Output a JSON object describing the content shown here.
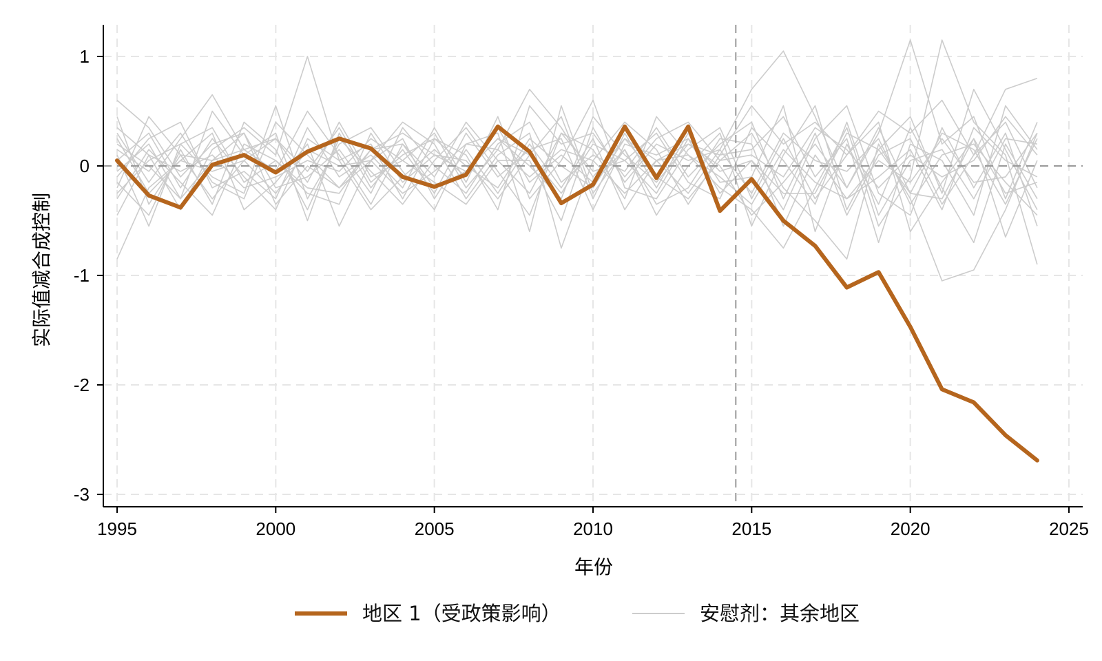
{
  "chart_data": {
    "type": "line",
    "xlabel": "年份",
    "ylabel": "实际值减合成控制",
    "xlim": [
      1995,
      2025
    ],
    "ylim": [
      -3,
      1
    ],
    "x_ticks": [
      1995,
      2000,
      2005,
      2010,
      2015,
      2020,
      2025
    ],
    "y_ticks": [
      1,
      0,
      -1,
      -2,
      -3
    ],
    "grid": true,
    "treatment_line_x": 2014.5,
    "reference_line_y": 0,
    "legend_position": "bottom",
    "colors": {
      "treated": "#B5651D",
      "placebo": "#CCCCCC"
    },
    "x": [
      1995,
      1996,
      1997,
      1998,
      1999,
      2000,
      2001,
      2002,
      2003,
      2004,
      2005,
      2006,
      2007,
      2008,
      2009,
      2010,
      2011,
      2012,
      2013,
      2014,
      2015,
      2016,
      2017,
      2018,
      2019,
      2020,
      2021,
      2022,
      2023,
      2024
    ],
    "series": [
      {
        "name": "地区 1（受政策影响）",
        "values": [
          0.05,
          -0.27,
          -0.38,
          0.01,
          0.1,
          -0.06,
          0.13,
          0.25,
          0.16,
          -0.1,
          -0.19,
          -0.08,
          0.36,
          0.13,
          -0.34,
          -0.17,
          0.36,
          -0.11,
          0.36,
          -0.41,
          -0.12,
          -0.5,
          -0.73,
          -1.11,
          -0.97,
          -1.47,
          -2.04,
          -2.16,
          -2.46,
          -2.69
        ]
      },
      {
        "name": "安慰剂：其余地区",
        "values": [
          0.6,
          0.35,
          -0.1,
          0.2,
          0.3,
          -0.35,
          0.0,
          -0.2,
          0.15,
          0.3,
          0.1,
          -0.05,
          0.25,
          0.0,
          -0.3,
          0.45,
          0.1,
          -0.15,
          0.2,
          0.1,
          0.55,
          0.2,
          0.4,
          0.1,
          0.5,
          0.3,
          0.6,
          0.1,
          0.7,
          0.8
        ]
      },
      {
        "values": [
          -0.2,
          0.45,
          0.1,
          -0.3,
          0.05,
          0.25,
          -0.15,
          0.4,
          -0.1,
          0.05,
          0.3,
          -0.2,
          0.15,
          0.7,
          0.35,
          -0.1,
          0.25,
          0.05,
          -0.25,
          0.15,
          0.7,
          1.05,
          0.45,
          -0.2,
          0.3,
          1.15,
          0.2,
          0.45,
          -0.3,
          0.4
        ]
      },
      {
        "values": [
          0.3,
          -0.15,
          0.25,
          0.65,
          0.15,
          -0.05,
          0.5,
          0.1,
          -0.35,
          0.2,
          -0.1,
          0.4,
          0.05,
          -0.25,
          0.3,
          0.15,
          -0.3,
          0.45,
          0.1,
          -0.2,
          -0.4,
          -0.75,
          -0.2,
          0.35,
          -0.55,
          -0.1,
          1.15,
          0.4,
          0.1,
          -0.9
        ]
      },
      {
        "values": [
          -0.45,
          0.1,
          -0.4,
          0.15,
          0.35,
          0.1,
          1.0,
          0.05,
          0.2,
          -0.3,
          0.25,
          0.1,
          -0.4,
          0.55,
          0.2,
          0.3,
          -0.1,
          0.25,
          0.4,
          0.05,
          0.3,
          -0.2,
          -0.5,
          -0.85,
          0.2,
          -0.3,
          -1.05,
          -0.95,
          -0.4,
          0.3
        ]
      },
      {
        "values": [
          0.1,
          -0.55,
          0.2,
          -0.1,
          -0.25,
          0.55,
          -0.3,
          0.2,
          0.35,
          -0.05,
          -0.4,
          0.2,
          0.3,
          -0.6,
          0.55,
          -0.25,
          0.15,
          -0.45,
          0.0,
          0.3,
          -0.55,
          0.1,
          0.55,
          -0.4,
          0.15,
          0.45,
          -0.25,
          0.7,
          0.15,
          -0.4
        ]
      },
      {
        "values": [
          -0.85,
          -0.2,
          0.05,
          0.3,
          -0.4,
          -0.15,
          0.2,
          -0.55,
          0.05,
          0.4,
          0.2,
          -0.3,
          0.1,
          0.3,
          -0.75,
          0.05,
          0.4,
          0.15,
          -0.35,
          0.1,
          0.15,
          0.45,
          -0.1,
          0.25,
          -0.7,
          0.2,
          0.05,
          -0.45,
          0.55,
          0.15
        ]
      },
      {
        "values": [
          0.2,
          0.0,
          -0.3,
          0.5,
          0.1,
          0.3,
          -0.5,
          0.3,
          -0.2,
          0.15,
          -0.25,
          0.3,
          -0.1,
          0.15,
          0.25,
          -0.4,
          0.2,
          0.1,
          0.25,
          -0.25,
          0.05,
          -0.4,
          0.25,
          0.55,
          -0.25,
          -0.45,
          0.35,
          -0.2,
          0.3,
          -0.55
        ]
      },
      {
        "values": [
          -0.1,
          0.25,
          0.4,
          -0.2,
          -0.05,
          -0.3,
          0.35,
          -0.1,
          0.1,
          -0.2,
          0.35,
          -0.15,
          0.45,
          -0.3,
          0.05,
          0.6,
          -0.2,
          -0.3,
          0.15,
          0.35,
          -0.3,
          0.25,
          -0.3,
          0.1,
          0.4,
          -0.6,
          -0.15,
          0.25,
          -0.65,
          0.05
        ]
      },
      {
        "values": [
          0.45,
          -0.35,
          0.1,
          0.05,
          0.3,
          -0.2,
          -0.1,
          0.15,
          -0.25,
          0.35,
          0.0,
          -0.25,
          0.2,
          0.4,
          -0.15,
          0.1,
          -0.05,
          0.35,
          -0.1,
          0.2,
          0.4,
          -0.3,
          0.3,
          -0.45,
          0.1,
          0.25,
          -0.35,
          0.1,
          0.4,
          -0.2
        ]
      },
      {
        "values": [
          -0.3,
          0.15,
          -0.15,
          -0.45,
          0.2,
          0.05,
          -0.25,
          -0.35,
          0.3,
          -0.15,
          0.1,
          0.05,
          -0.3,
          0.1,
          0.45,
          -0.3,
          0.3,
          -0.2,
          0.3,
          -0.15,
          -0.1,
          0.55,
          -0.6,
          0.2,
          -0.35,
          0.35,
          -0.2,
          -0.7,
          0.2,
          -0.3
        ]
      },
      {
        "values": [
          0.15,
          -0.05,
          0.3,
          -0.15,
          -0.3,
          0.4,
          0.1,
          -0.2,
          0.05,
          0.25,
          -0.3,
          0.15,
          -0.25,
          0.2,
          -0.2,
          0.25,
          -0.4,
          0.05,
          0.2,
          0.0,
          -0.45,
          -0.15,
          0.2,
          -0.2,
          0.35,
          -0.25,
          0.3,
          0.15,
          -0.35,
          0.25
        ]
      },
      {
        "values": [
          0.05,
          0.3,
          -0.2,
          0.25,
          -0.1,
          -0.4,
          0.25,
          0.05,
          -0.4,
          -0.1,
          0.15,
          -0.1,
          0.35,
          -0.15,
          0.1,
          -0.15,
          0.15,
          -0.35,
          -0.2,
          0.25,
          0.2,
          -0.55,
          0.1,
          -0.3,
          -0.1,
          0.15,
          -0.4,
          0.35,
          0.05,
          -0.1
        ]
      },
      {
        "values": [
          -0.15,
          -0.45,
          0.15,
          -0.35,
          0.4,
          0.15,
          -0.4,
          0.25,
          -0.05,
          -0.35,
          0.05,
          0.35,
          -0.05,
          -0.45,
          0.3,
          -0.05,
          0.05,
          0.3,
          -0.15,
          -0.3,
          0.35,
          0.05,
          -0.35,
          0.4,
          -0.45,
          0.05,
          0.15,
          -0.3,
          0.25,
          0.2
        ]
      },
      {
        "values": [
          0.35,
          0.1,
          -0.05,
          0.1,
          -0.2,
          -0.1,
          0.05,
          -0.05,
          0.25,
          0.05,
          -0.15,
          -0.35,
          0.05,
          0.05,
          -0.5,
          0.35,
          -0.15,
          0.2,
          0.05,
          0.15,
          -0.25,
          0.3,
          0.05,
          -0.05,
          0.25,
          -0.35,
          0.1,
          0.2,
          -0.15,
          -0.45
        ]
      },
      {
        "values": [
          -0.05,
          0.2,
          -0.3,
          0.05,
          0.15,
          0.25,
          -0.05,
          0.35,
          -0.15,
          0.1,
          0.25,
          0.0,
          -0.2,
          0.25,
          0.0,
          -0.2,
          0.25,
          -0.1,
          -0.3,
          0.05,
          0.1,
          -0.1,
          0.35,
          0.15,
          -0.2,
          0.1,
          -0.1,
          0.05,
          0.45,
          0.1
        ]
      },
      {
        "values": [
          0.25,
          -0.25,
          0.05,
          -0.05,
          0.05,
          -0.25,
          0.15,
          0.0,
          0.05,
          -0.25,
          -0.05,
          0.2,
          0.15,
          -0.1,
          0.15,
          0.05,
          -0.25,
          0.05,
          0.1,
          -0.1,
          -0.35,
          0.15,
          -0.15,
          -0.3,
          0.05,
          -0.15,
          0.25,
          -0.15,
          -0.1,
          0.3
        ]
      },
      {
        "values": [
          -0.25,
          0.05,
          0.2,
          0.35,
          -0.15,
          0.05,
          -0.2,
          -0.25,
          0.15,
          0.2,
          -0.2,
          -0.05,
          0.25,
          0.1,
          -0.25,
          0.2,
          0.05,
          -0.25,
          0.25,
          -0.05,
          0.05,
          -0.25,
          -0.25,
          0.3,
          0.15,
          -0.25,
          -0.3,
          0.25,
          -0.25,
          -0.15
        ]
      }
    ]
  },
  "legend": {
    "items": [
      {
        "label": "地区 1（受政策影响）",
        "style": "treated"
      },
      {
        "label": "安慰剂：其余地区",
        "style": "placebo"
      }
    ]
  }
}
